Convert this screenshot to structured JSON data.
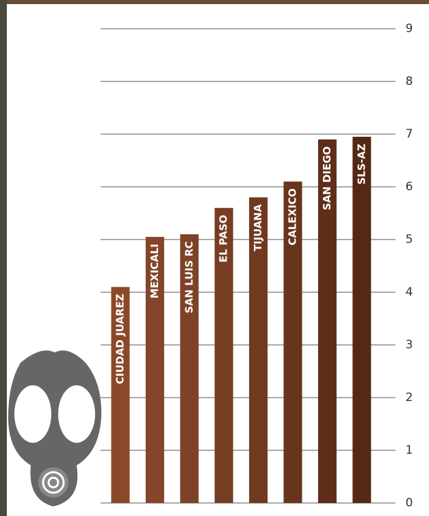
{
  "chart_data": {
    "type": "bar",
    "categories": [
      "CIUDAD JUAREZ",
      "MEXICALI",
      "SAN LUIS RC",
      "EL PASO",
      "TIJUANA",
      "CALEXICO",
      "SAN DIEGO",
      "SLS-AZ"
    ],
    "values": [
      4.1,
      5.05,
      5.1,
      5.6,
      5.8,
      6.1,
      6.9,
      6.95
    ],
    "colors": [
      "#8a4a2a",
      "#84452a",
      "#7e4228",
      "#773e24",
      "#703a20",
      "#68341c",
      "#5e2e18",
      "#552814"
    ],
    "ylim": [
      0,
      9
    ],
    "yticks": [
      0,
      1,
      2,
      3,
      4,
      5,
      6,
      7,
      8,
      9
    ],
    "grid": true,
    "y_axis_side": "right"
  }
}
